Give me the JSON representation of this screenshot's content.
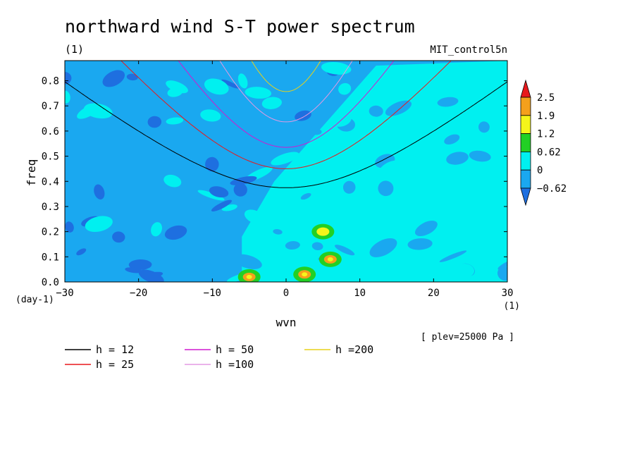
{
  "chart_data": {
    "type": "heatmap",
    "title": "northward wind S-T power spectrum",
    "units_label": "(1)",
    "dataset": "MIT_control5n",
    "xlabel": "wvn",
    "x_unit": "(1)",
    "ylabel": "freq",
    "y_unit": "(day-1)",
    "level_note": "[ plev=25000 Pa ]",
    "xlim": [
      -30,
      30
    ],
    "ylim": [
      0,
      0.88
    ],
    "x_ticks": [
      "−30",
      "−20",
      "−10",
      "0",
      "10",
      "20",
      "30"
    ],
    "y_ticks": [
      "0.0",
      "0.1",
      "0.2",
      "0.3",
      "0.4",
      "0.5",
      "0.6",
      "0.7",
      "0.8"
    ],
    "colorbar": {
      "labels": [
        "2.5",
        "1.9",
        "1.2",
        "0.62",
        "0",
        "−0.62"
      ],
      "bands": [
        {
          "range": [
            2.5,
            null
          ],
          "color": "#e8191c"
        },
        {
          "range": [
            1.9,
            2.5
          ],
          "color": "#f4a01c"
        },
        {
          "range": [
            1.2,
            1.9
          ],
          "color": "#f5f51a"
        },
        {
          "range": [
            0.62,
            1.2
          ],
          "color": "#22d024"
        },
        {
          "range": [
            0,
            0.62
          ],
          "color": "#00f0f0"
        },
        {
          "range": [
            -0.62,
            0
          ],
          "color": "#1aa8f0"
        },
        {
          "range": [
            null,
            -0.62
          ],
          "color": "#1e6fe0"
        }
      ]
    },
    "field_description": {
      "background_color": "#1aa8f0",
      "low_blobs_color": "#1e6fe0",
      "positive_region_color": "#00f0f0",
      "hotspots": [
        {
          "x": 5,
          "y": 0.2,
          "level": "yellow"
        },
        {
          "x": 2.5,
          "y": 0.03,
          "level": "orange"
        },
        {
          "x": -5,
          "y": 0.02,
          "level": "orange"
        },
        {
          "x": 6,
          "y": 0.09,
          "level": "orange"
        }
      ]
    },
    "series": [
      {
        "name": "h = 12",
        "color": "#000000",
        "h": 12
      },
      {
        "name": "h = 25",
        "color": "#e8191c",
        "h": 25
      },
      {
        "name": "h = 50",
        "color": "#d01ad0",
        "h": 50
      },
      {
        "name": "h =100",
        "color": "#e39ae3",
        "h": 100
      },
      {
        "name": "h =200",
        "color": "#e8d21a",
        "h": 200
      }
    ]
  }
}
